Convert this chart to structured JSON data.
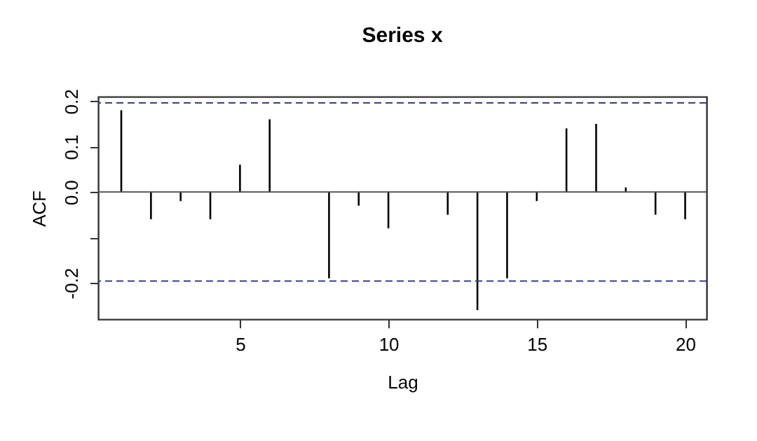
{
  "chart_data": {
    "type": "bar",
    "title": "Series  x",
    "xlabel": "Lag",
    "ylabel": "ACF",
    "x": [
      1,
      2,
      3,
      4,
      5,
      6,
      7,
      8,
      9,
      10,
      11,
      12,
      13,
      14,
      15,
      16,
      17,
      18,
      19,
      20
    ],
    "series": [
      {
        "color": "#000000",
        "values": [
          0.18,
          -0.06,
          -0.02,
          -0.06,
          0.06,
          0.16,
          0.0,
          -0.19,
          -0.03,
          -0.08,
          0.0,
          -0.05,
          -0.26,
          -0.19,
          -0.02,
          0.14,
          0.15,
          0.01,
          -0.05,
          -0.06
        ]
      }
    ],
    "xlim": [
      0.22,
      20.72
    ],
    "ylim": [
      -0.28,
      0.21
    ],
    "xticks": [
      5,
      10,
      15,
      20
    ],
    "yticks": [
      -0.2,
      {
        "value": -0.1,
        "label": null
      },
      {
        "value": 0,
        "label": "0.0"
      },
      0.1,
      0.2
    ],
    "ref_lines": [
      {
        "axis": "y",
        "value": 0.196,
        "color": "#3b3b8f",
        "line_style": "dashed"
      },
      {
        "axis": "y",
        "value": -0.196,
        "color": "#3b3b8f",
        "line_style": "dashed"
      },
      {
        "axis": "y",
        "value": 0,
        "color": "#555555",
        "line_style": "solid"
      }
    ],
    "grid": false
  }
}
